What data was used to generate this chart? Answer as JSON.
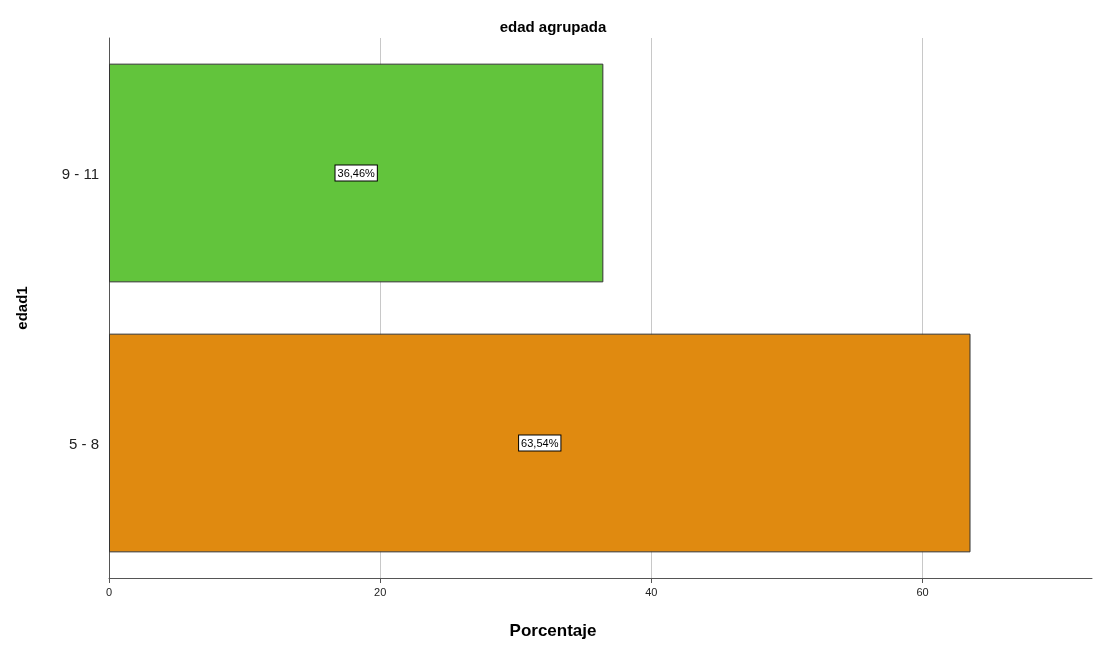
{
  "chart_data": {
    "type": "bar",
    "orientation": "horizontal",
    "title": "edad agrupada",
    "xlabel": "Porcentaje",
    "ylabel": "edad1",
    "categories": [
      "9 - 11",
      "5 - 8"
    ],
    "values": [
      36.46,
      63.54
    ],
    "colors": [
      "#62c43c",
      "#e08a10"
    ],
    "value_labels": [
      "36,46%",
      "63,54%"
    ],
    "xlim": [
      0,
      72.5
    ],
    "xticks": [
      0,
      20,
      40,
      60
    ],
    "grid": "x"
  }
}
